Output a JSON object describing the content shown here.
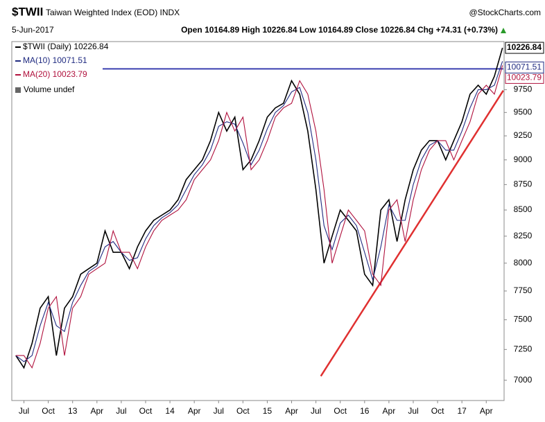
{
  "chart_data": {
    "type": "line",
    "title": "$TWII",
    "subtitle": "Taiwan Weighted Index (EOD) INDX",
    "source": "@StockCharts.com",
    "date": "5-Jun-2017",
    "quote": "Open 10164.89 High 10226.84 Low 10164.89 Close 10226.84 Chg +74.31 (+0.73%)",
    "volume_label": "Volume undef",
    "log_scale": true,
    "grid": false,
    "legend": "top-left",
    "xlim": [
      -1.5,
      59.2
    ],
    "ylim": [
      6840,
      10300
    ],
    "yticks": [
      7000,
      7250,
      7500,
      7750,
      8000,
      8250,
      8500,
      8750,
      9000,
      9250,
      9500,
      9750
    ],
    "xticks": [
      {
        "value": 0,
        "label": "Jul"
      },
      {
        "value": 3,
        "label": "Oct"
      },
      {
        "value": 6,
        "label": "13"
      },
      {
        "value": 9,
        "label": "Apr"
      },
      {
        "value": 12,
        "label": "Jul"
      },
      {
        "value": 15,
        "label": "Oct"
      },
      {
        "value": 18,
        "label": "14"
      },
      {
        "value": 21,
        "label": "Apr"
      },
      {
        "value": 24,
        "label": "Jul"
      },
      {
        "value": 27,
        "label": "Oct"
      },
      {
        "value": 30,
        "label": "15"
      },
      {
        "value": 33,
        "label": "Apr"
      },
      {
        "value": 36,
        "label": "Jul"
      },
      {
        "value": 39,
        "label": "Oct"
      },
      {
        "value": 42,
        "label": "16"
      },
      {
        "value": 45,
        "label": "Apr"
      },
      {
        "value": 48,
        "label": "Jul"
      },
      {
        "value": 51,
        "label": "Oct"
      },
      {
        "value": 54,
        "label": "17"
      },
      {
        "value": 57,
        "label": "Apr"
      }
    ],
    "x": [
      -1,
      0,
      1,
      2,
      3,
      4,
      5,
      6,
      7,
      8,
      9,
      10,
      11,
      12,
      13,
      14,
      15,
      16,
      17,
      18,
      19,
      20,
      21,
      22,
      23,
      24,
      25,
      26,
      27,
      28,
      29,
      30,
      31,
      32,
      33,
      34,
      35,
      36,
      37,
      38,
      39,
      40,
      41,
      42,
      43,
      44,
      45,
      46,
      47,
      48,
      49,
      50,
      51,
      52,
      53,
      54,
      55,
      56,
      57,
      58,
      59
    ],
    "series": [
      {
        "name": "$TWII (Daily) 10226.84",
        "color": "#000000",
        "values": [
          7200,
          7100,
          7300,
          7600,
          7700,
          7200,
          7600,
          7700,
          7900,
          7950,
          8000,
          8300,
          8100,
          8100,
          7950,
          8150,
          8300,
          8400,
          8450,
          8500,
          8600,
          8800,
          8900,
          9000,
          9200,
          9500,
          9300,
          9450,
          8900,
          9000,
          9200,
          9450,
          9550,
          9600,
          9850,
          9700,
          9300,
          8700,
          8000,
          8250,
          8500,
          8400,
          8300,
          7900,
          7800,
          8500,
          8600,
          8200,
          8600,
          8900,
          9100,
          9200,
          9200,
          9000,
          9200,
          9400,
          9700,
          9800,
          9700,
          9900,
          10226.84
        ]
      },
      {
        "name": "MA(10) 10071.51",
        "color": "#1f2a80",
        "values": [
          7200,
          7150,
          7200,
          7450,
          7650,
          7450,
          7400,
          7650,
          7800,
          7925,
          7975,
          8150,
          8200,
          8100,
          8025,
          8050,
          8225,
          8350,
          8425,
          8475,
          8550,
          8700,
          8850,
          8950,
          9100,
          9350,
          9400,
          9375,
          9175,
          8950,
          9100,
          9325,
          9500,
          9575,
          9725,
          9775,
          9500,
          9000,
          8350,
          8125,
          8375,
          8450,
          8350,
          8100,
          7850,
          8150,
          8550,
          8400,
          8400,
          8750,
          9000,
          9150,
          9200,
          9100,
          9100,
          9300,
          9550,
          9750,
          9750,
          9800,
          10071.51
        ]
      },
      {
        "name": "MA(20) 10023.79",
        "color": "#b0103c",
        "values": [
          7200,
          7200,
          7100,
          7300,
          7600,
          7700,
          7200,
          7600,
          7700,
          7900,
          7950,
          8000,
          8300,
          8100,
          8100,
          7950,
          8150,
          8300,
          8400,
          8450,
          8500,
          8600,
          8800,
          8900,
          9000,
          9200,
          9500,
          9300,
          9450,
          8900,
          9000,
          9200,
          9450,
          9550,
          9600,
          9850,
          9700,
          9300,
          8700,
          8000,
          8250,
          8500,
          8400,
          8300,
          7900,
          7800,
          8500,
          8600,
          8200,
          8600,
          8900,
          9100,
          9200,
          9200,
          9000,
          9200,
          9400,
          9700,
          9800,
          9700,
          10023.79
        ]
      }
    ],
    "hline": {
      "x": [
        9.7,
        59.1
      ],
      "values": [
        9984,
        9984
      ],
      "color": "#3a3fb0"
    },
    "trendline": {
      "x": [
        36.6,
        59.1
      ],
      "values": [
        7033,
        9740
      ],
      "color": "#e03030"
    }
  }
}
